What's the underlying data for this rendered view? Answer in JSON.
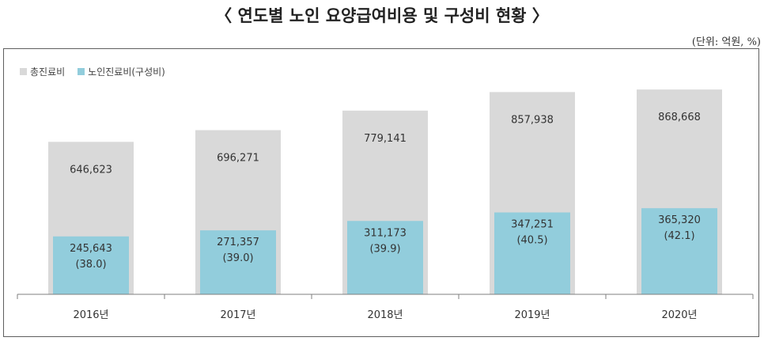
{
  "header": {
    "title": "〈 연도별 노인 요양급여비용 및 구성비 현황 〉",
    "unit_note": "(단위: 억원, %)"
  },
  "colors": {
    "total": "#d9d9d9",
    "elderly": "#92cddc",
    "axis": "#7f7f7f",
    "text": "#333333"
  },
  "chart_data": {
    "type": "bar",
    "categories": [
      "2016년",
      "2017년",
      "2018년",
      "2019년",
      "2020년"
    ],
    "series": [
      {
        "name": "총진료비",
        "values": [
          646623,
          696271,
          779141,
          857938,
          868668
        ]
      },
      {
        "name": "노인진료비(구성비)",
        "values": [
          245643,
          271357,
          311173,
          347251,
          365320
        ],
        "shares": [
          38.0,
          39.0,
          39.9,
          40.5,
          42.1
        ]
      }
    ],
    "value_labels": [
      "646,623",
      "696,271",
      "779,141",
      "857,938",
      "868,668"
    ],
    "share_value_labels": [
      "245,643",
      "271,357",
      "311,173",
      "347,251",
      "365,320"
    ],
    "share_pct_labels": [
      "(38.0)",
      "(39.0)",
      "(39.9)",
      "(40.5)",
      "(42.1)"
    ],
    "ylim": [
      0,
      1000000
    ],
    "grid": false,
    "legend_position": "top-left",
    "bars": "overlapped"
  }
}
